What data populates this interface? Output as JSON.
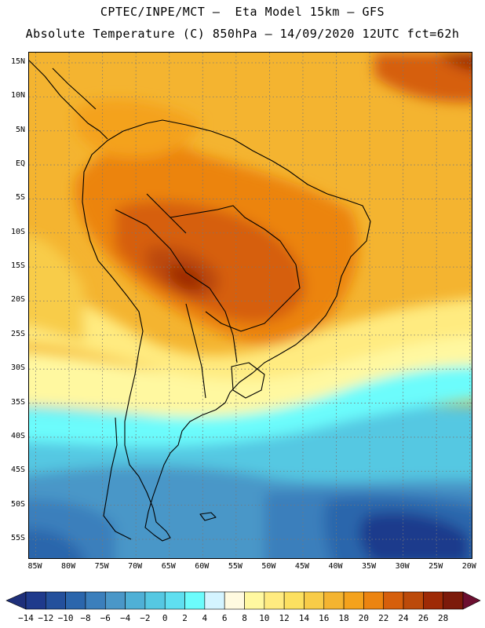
{
  "header": {
    "line1": "CPTEC/INPE/MCT –  Eta Model 15km – GFS",
    "line2": "Absolute Temperature (C) 850hPa – 14/09/2020 12UTC fct=62h"
  },
  "map": {
    "lat_labels": [
      "15N",
      "10N",
      "5N",
      "EQ",
      "5S",
      "10S",
      "15S",
      "20S",
      "25S",
      "30S",
      "35S",
      "40S",
      "45S",
      "50S",
      "55S"
    ],
    "lat_values": [
      15,
      10,
      5,
      0,
      -5,
      -10,
      -15,
      -20,
      -25,
      -30,
      -35,
      -40,
      -45,
      -50,
      -55
    ],
    "lon_labels": [
      "85W",
      "80W",
      "75W",
      "70W",
      "65W",
      "60W",
      "55W",
      "50W",
      "45W",
      "40W",
      "35W",
      "30W",
      "25W",
      "20W"
    ],
    "lon_values": [
      -85,
      -80,
      -75,
      -70,
      -65,
      -60,
      -55,
      -50,
      -45,
      -40,
      -35,
      -30,
      -25,
      -20
    ],
    "lat_range": [
      -58,
      16.5
    ],
    "lon_range": [
      -86,
      -19.5
    ]
  },
  "legend": {
    "labels": [
      "-14",
      "-12",
      "-10",
      "-8",
      "-6",
      "-4",
      "-2",
      "0",
      "2",
      "4",
      "6",
      "8",
      "10",
      "12",
      "14",
      "16",
      "18",
      "20",
      "22",
      "24",
      "26",
      "28"
    ],
    "colors": [
      "#1f3a8c",
      "#24509c",
      "#2b66ac",
      "#3b7fbc",
      "#4a97c8",
      "#4fb0d6",
      "#55c8e2",
      "#5fdff0",
      "#6cfcfc",
      "#d4f4ff",
      "#fffae0",
      "#fff8a0",
      "#ffeb80",
      "#fce060",
      "#f8cc48",
      "#f4b430",
      "#f4a21c",
      "#ec8410",
      "#d65f0c",
      "#bc4a0a",
      "#9e2a06",
      "#7c1a0a"
    ],
    "under_color": "#1e2f7a",
    "over_color": "#6c0f30"
  }
}
